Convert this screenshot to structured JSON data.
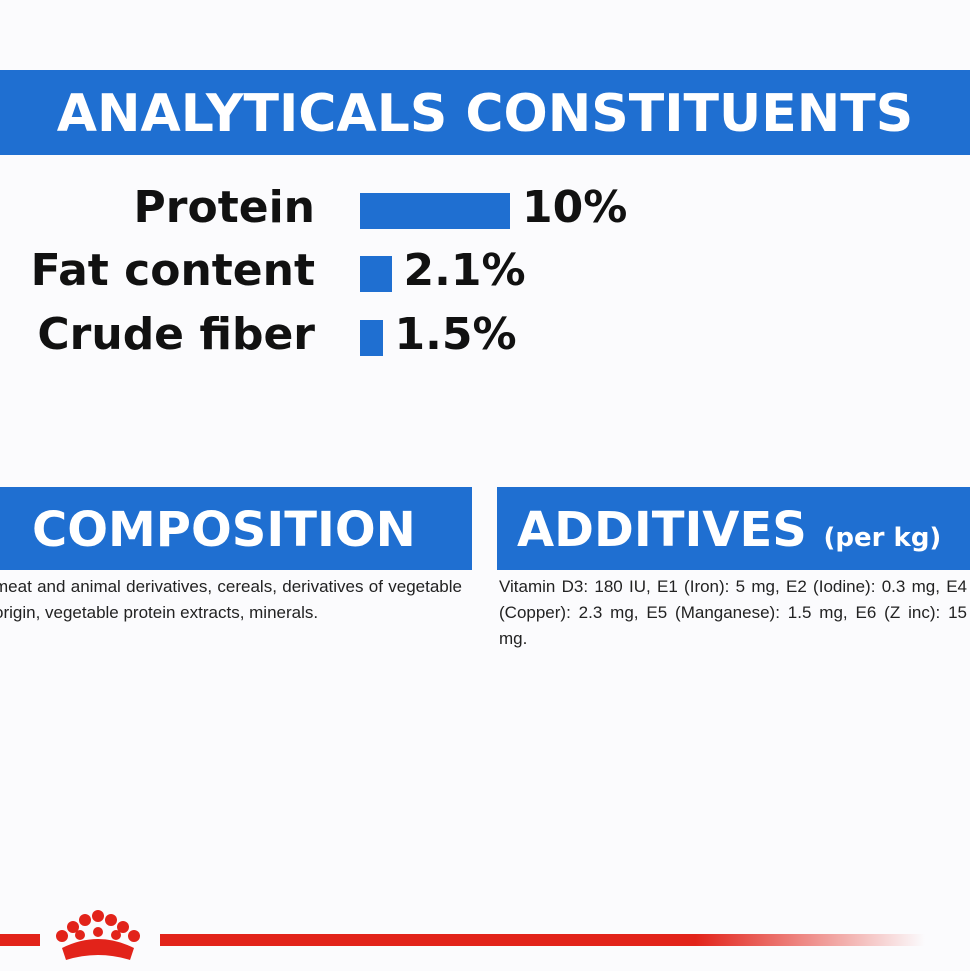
{
  "header": {
    "title": "ANALYTICALS CONSTITUENTS"
  },
  "chart_data": {
    "type": "bar",
    "categories": [
      "Protein",
      "Fat content",
      "Crude fiber"
    ],
    "values": [
      10,
      2.1,
      1.5
    ],
    "value_labels": [
      "10%",
      "2.1%",
      "1.5%"
    ],
    "color": "#1f6fd1"
  },
  "composition": {
    "title": "COMPOSITION",
    "text": "meat and animal derivatives, cereals, derivatives of vegetable origin, vegetable protein extracts, minerals."
  },
  "additives": {
    "title": "ADDITIVES",
    "subtitle": "(per kg)",
    "text": "Vitamin D3: 180 IU, E1 (Iron): 5 mg, E2 (Iodine): 0.3 mg, E4 (Copper): 2.3 mg, E5 (Manganese): 1.5 mg, E6 (Z inc): 15 mg."
  }
}
